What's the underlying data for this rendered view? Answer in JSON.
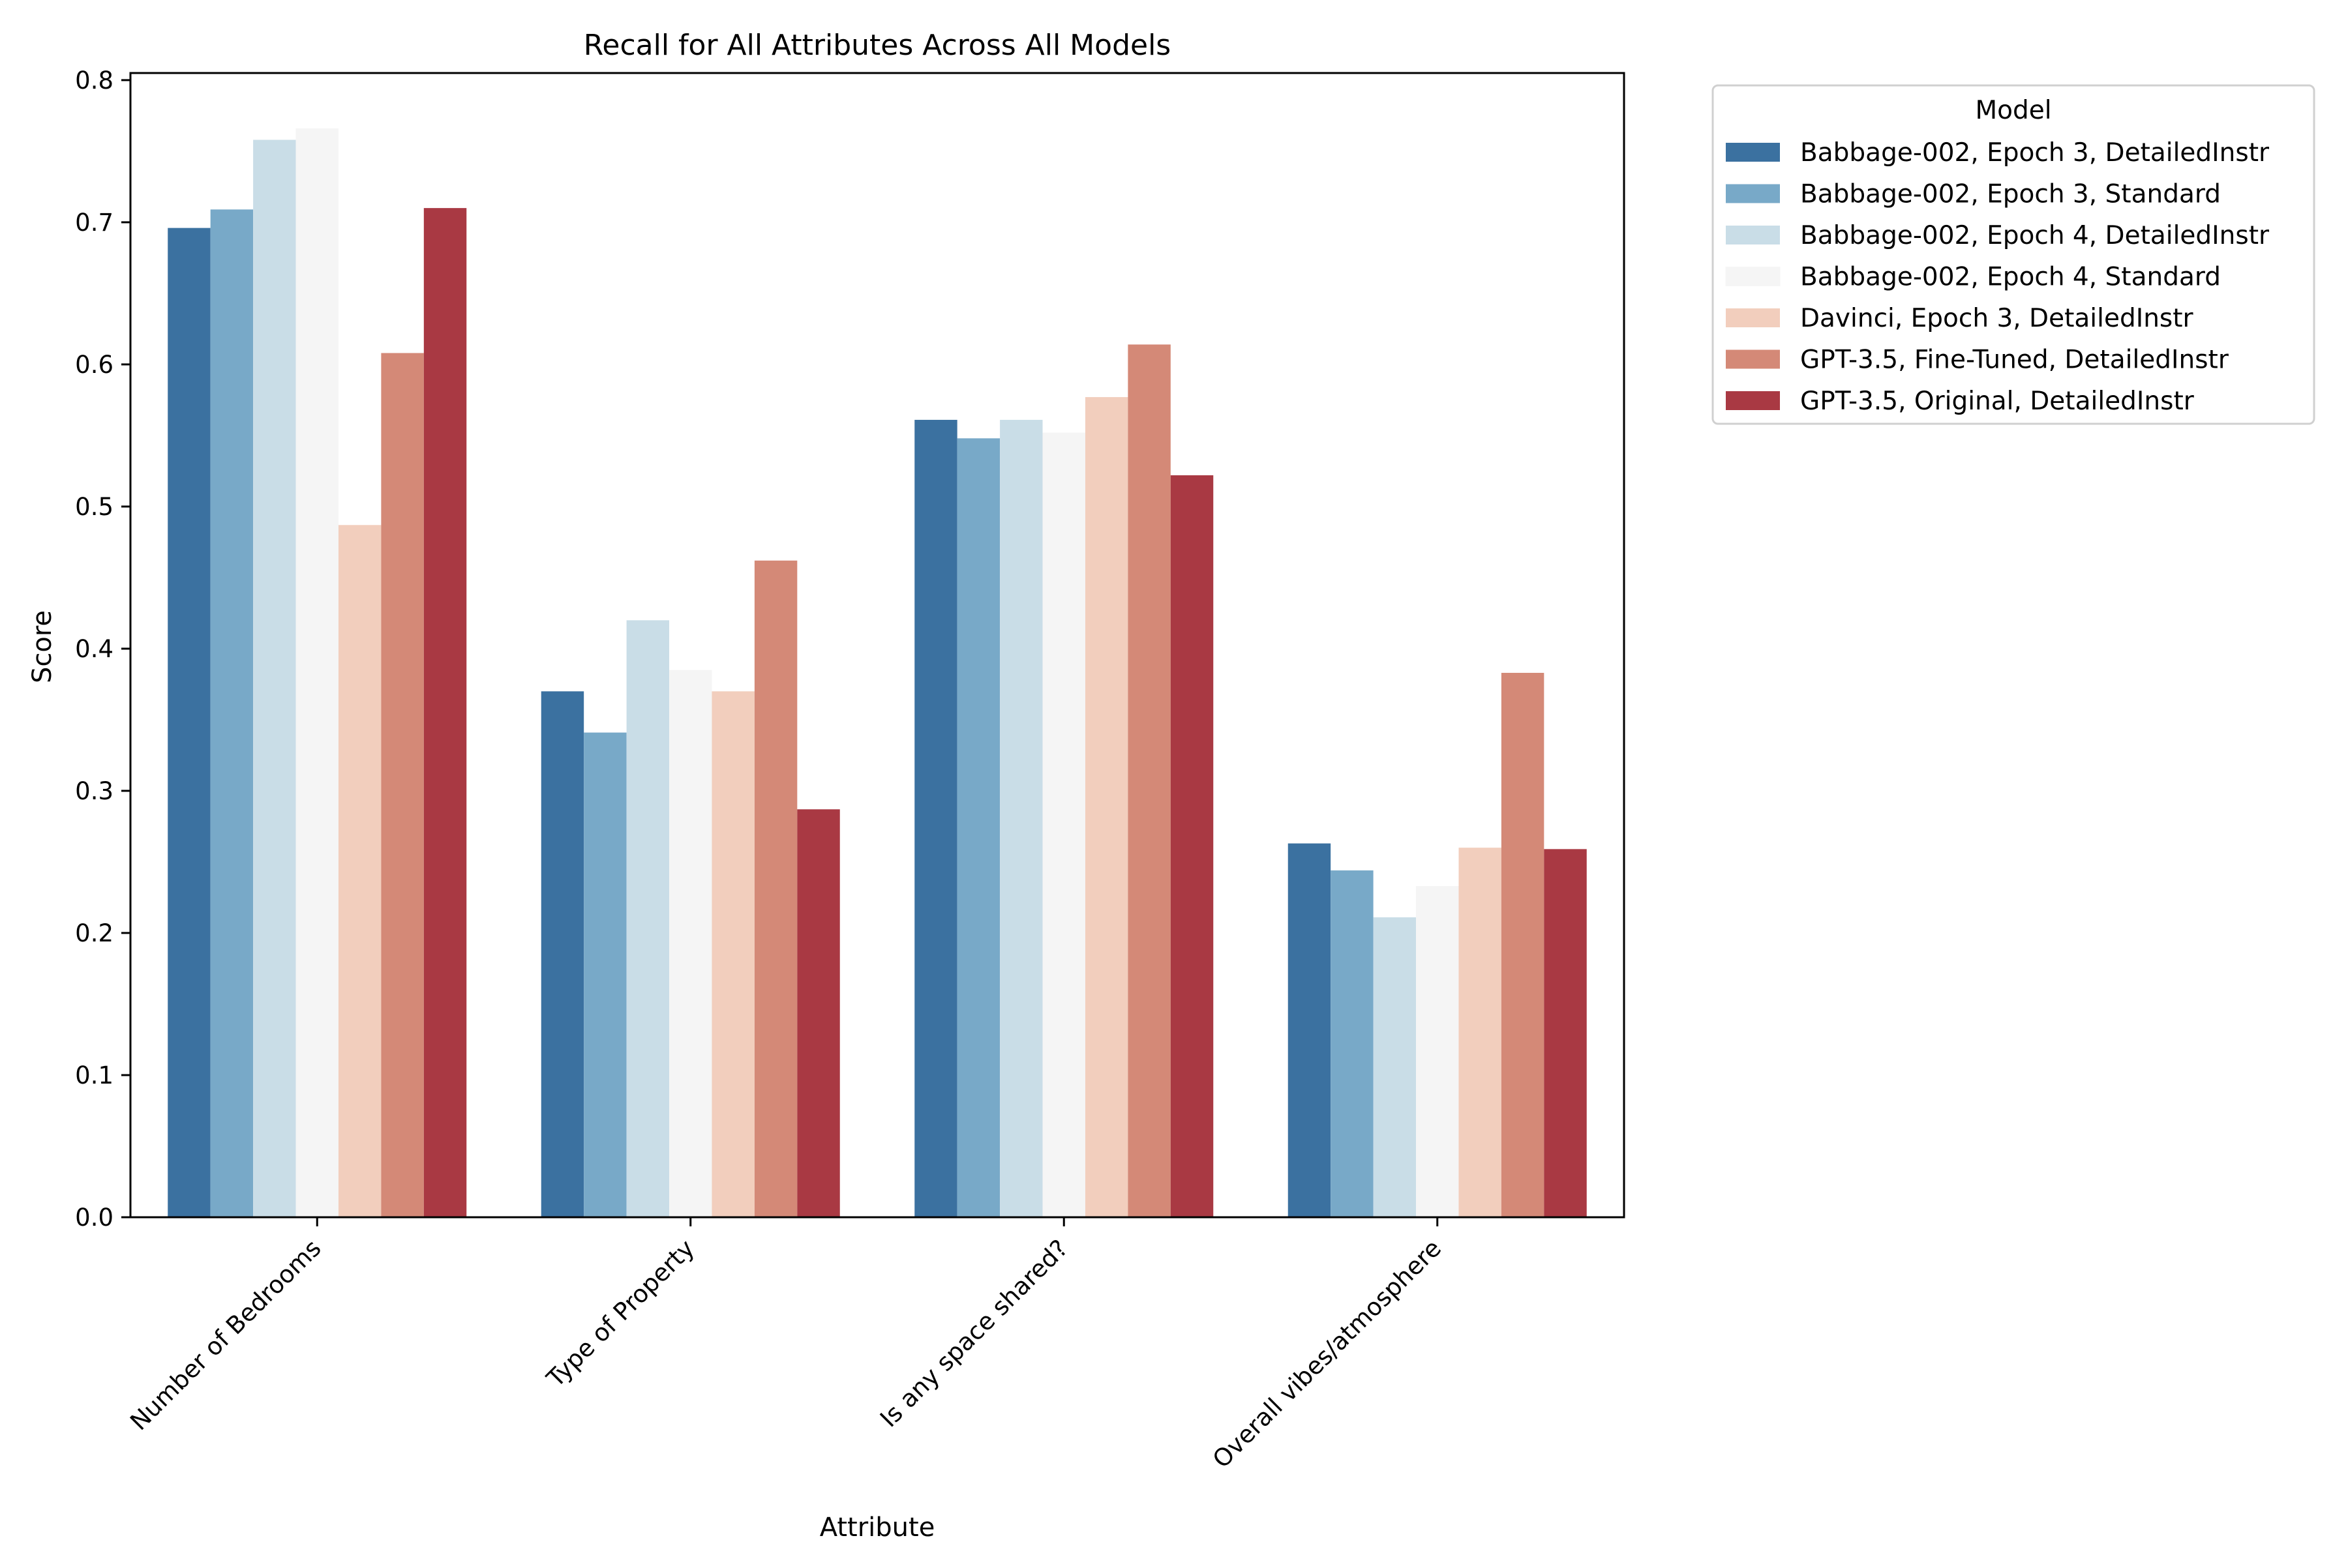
{
  "chart_data": {
    "type": "bar",
    "title": "Recall for All Attributes Across All Models",
    "xlabel": "Attribute",
    "ylabel": "Score",
    "ylim": [
      0,
      0.805
    ],
    "yticks": [
      "0.0",
      "0.1",
      "0.2",
      "0.3",
      "0.4",
      "0.5",
      "0.6",
      "0.7",
      "0.8"
    ],
    "grid": false,
    "legend": {
      "title": "Model",
      "placement": "outside-top-right"
    },
    "categories": [
      "Number of Bedrooms",
      "Type of Property",
      "Is any space shared?",
      "Overall vibes/atmosphere"
    ],
    "series": [
      {
        "name": "Babbage-002, Epoch 3, DetailedInstr",
        "color": "#3b71a0",
        "values": [
          0.696,
          0.37,
          0.561,
          0.263
        ]
      },
      {
        "name": "Babbage-002, Epoch 3, Standard",
        "color": "#78a9c8",
        "values": [
          0.709,
          0.341,
          0.548,
          0.244
        ]
      },
      {
        "name": "Babbage-002, Epoch 4, DetailedInstr",
        "color": "#c9dde7",
        "values": [
          0.758,
          0.42,
          0.561,
          0.211
        ]
      },
      {
        "name": "Babbage-002, Epoch 4, Standard",
        "color": "#f5f5f5",
        "values": [
          0.766,
          0.385,
          0.552,
          0.233
        ]
      },
      {
        "name": "Davinci, Epoch 3, DetailedInstr",
        "color": "#f2cebd",
        "values": [
          0.487,
          0.37,
          0.577,
          0.26
        ]
      },
      {
        "name": "GPT-3.5, Fine-Tuned, DetailedInstr",
        "color": "#d48977",
        "values": [
          0.608,
          0.462,
          0.614,
          0.383
        ]
      },
      {
        "name": "GPT-3.5, Original, DetailedInstr",
        "color": "#a93943",
        "values": [
          0.71,
          0.287,
          0.522,
          0.259
        ]
      }
    ]
  }
}
